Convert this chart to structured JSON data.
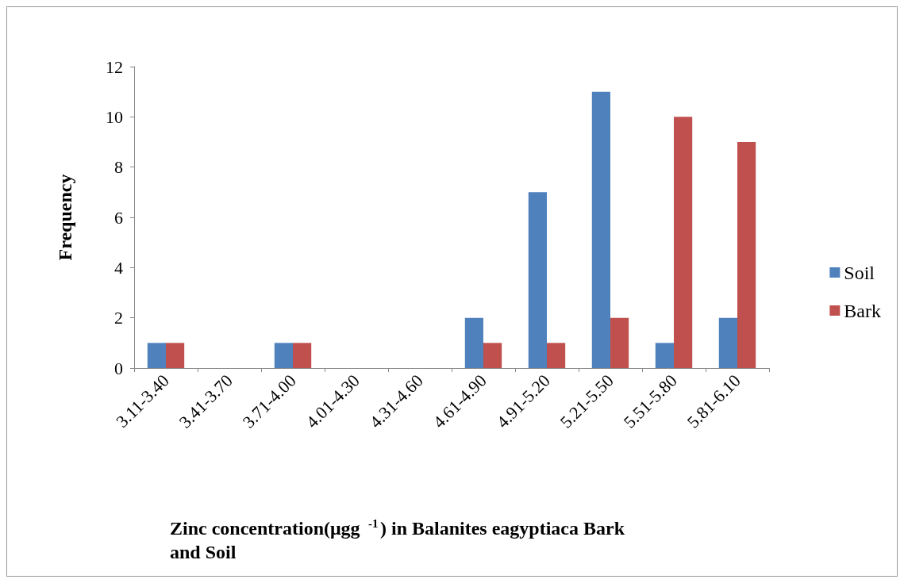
{
  "chart_data": {
    "type": "bar",
    "xlabel": "Zinc concentration(μgg$^{-1}$) in Balanites eagyptiaca Bark and Soil",
    "ylabel": "Frequency",
    "categories": [
      "3.11-3.40",
      "3.41-3.70",
      "3.71-4.00",
      "4.01-4.30",
      "4.31-4.60",
      "4.61-4.90",
      "4.91-5.20",
      "5.21-5.50",
      "5.51-5.80",
      "5.81-6.10"
    ],
    "series": [
      {
        "name": "Soil",
        "color": "#4f81bd",
        "values": [
          1,
          0,
          1,
          0,
          0,
          2,
          7,
          11,
          1,
          2
        ]
      },
      {
        "name": "Bark",
        "color": "#c0504d",
        "values": [
          1,
          0,
          1,
          0,
          0,
          1,
          1,
          2,
          10,
          9
        ]
      }
    ],
    "ylim": [
      0,
      12
    ],
    "yticks": [
      0,
      2,
      4,
      6,
      8,
      10,
      12
    ],
    "grid": false,
    "legend": "right"
  }
}
